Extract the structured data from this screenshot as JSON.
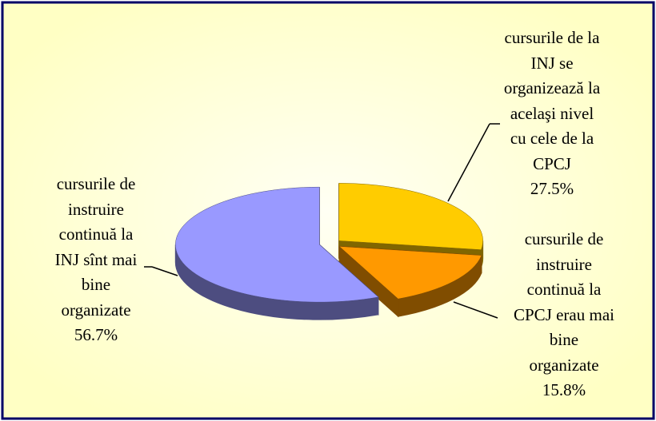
{
  "chart_data": {
    "type": "pie",
    "categories": [
      "cursurile de la\nINJ se\norganizează la\nacelaşi nivel\ncu cele de la\nCPCJ",
      "cursurile de\ninstruire\ncontinuă la\nCPCJ erau mai\nbine\norganizate",
      "cursurile de\ninstruire\ncontinuă la\nINJ sînt mai\nbine\norganizate"
    ],
    "values": [
      27.5,
      15.8,
      56.7
    ],
    "value_labels": [
      "27.5%",
      "15.8%",
      "56.7%"
    ],
    "colors": [
      "#FFCC00",
      "#FF9900",
      "#9999FF"
    ]
  }
}
